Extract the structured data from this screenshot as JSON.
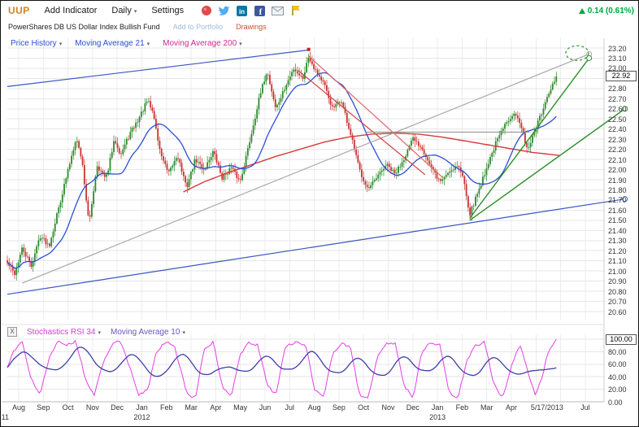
{
  "toolbar": {
    "symbol": "UUP",
    "add_indicator": "Add Indicator",
    "interval": "Daily",
    "settings": "Settings",
    "icons": [
      {
        "name": "stocktwits",
        "color": "#e14b4b"
      },
      {
        "name": "twitter",
        "color": "#55acee"
      },
      {
        "name": "linkedin",
        "color": "#0e76a8"
      },
      {
        "name": "facebook",
        "color": "#3b5998"
      },
      {
        "name": "email",
        "color": "#9aa7b5"
      },
      {
        "name": "flag",
        "color": "#f0c400"
      }
    ],
    "change_text": "0.14 (0.61%)",
    "change_color": "#00a63e"
  },
  "subheader": {
    "fund_name": "PowerShares DB US Dollar Index Bullish Fund",
    "add_to_portfolio": "Add to Portfolio",
    "drawings": "Drawings"
  },
  "price_panel": {
    "legend": [
      {
        "label": "Price History",
        "color": "#2b4fd8"
      },
      {
        "label": "Moving Average 21",
        "color": "#2b4fd8"
      },
      {
        "label": "Moving Average 200",
        "color": "#cc2d8e"
      }
    ],
    "last_price_badge": "22.92",
    "axis_ticks": [
      "23.20",
      "23.10",
      "23.00",
      "22.90",
      "22.80",
      "22.70",
      "22.60",
      "22.50",
      "22.40",
      "22.30",
      "22.20",
      "22.10",
      "22.00",
      "21.90",
      "21.80",
      "21.70",
      "21.60",
      "21.50",
      "21.40",
      "21.30",
      "21.20",
      "21.10",
      "21.00",
      "20.90",
      "20.80",
      "20.70",
      "20.60"
    ]
  },
  "stoch_panel": {
    "close_label": "X",
    "legend": [
      {
        "label": "Stochastics RSI 34",
        "color": "#d23bd2"
      },
      {
        "label": "Moving Average 10",
        "color": "#6a55c0"
      }
    ],
    "badge": "100.00",
    "axis_ticks": [
      "80.00",
      "60.00",
      "40.00",
      "20.00",
      "0.00"
    ]
  },
  "x_axis": {
    "tick_count": 24,
    "months": [
      {
        "label": "Aug",
        "tick": 0
      },
      {
        "label": "Sep",
        "tick": 1
      },
      {
        "label": "Oct",
        "tick": 2
      },
      {
        "label": "Nov",
        "tick": 3
      },
      {
        "label": "Dec",
        "tick": 4
      },
      {
        "label": "Jan",
        "tick": 5
      },
      {
        "label": "Feb",
        "tick": 6
      },
      {
        "label": "Mar",
        "tick": 7
      },
      {
        "label": "Apr",
        "tick": 8
      },
      {
        "label": "May",
        "tick": 9
      },
      {
        "label": "Jun",
        "tick": 10
      },
      {
        "label": "Jul",
        "tick": 11
      },
      {
        "label": "Aug",
        "tick": 12
      },
      {
        "label": "Sep",
        "tick": 13
      },
      {
        "label": "Oct",
        "tick": 14
      },
      {
        "label": "Nov",
        "tick": 15
      },
      {
        "label": "Dec",
        "tick": 16
      },
      {
        "label": "Jan",
        "tick": 17
      },
      {
        "label": "Feb",
        "tick": 18
      },
      {
        "label": "Mar",
        "tick": 19
      },
      {
        "label": "Apr",
        "tick": 20
      },
      {
        "label": "5/17/2013",
        "tick": 21.45
      },
      {
        "label": "Jul",
        "tick": 23
      }
    ],
    "years": [
      {
        "label": "11",
        "tick": -0.55
      },
      {
        "label": "2012",
        "tick": 5
      },
      {
        "label": "2013",
        "tick": 17
      }
    ]
  },
  "chart_data": {
    "type": "candlestick",
    "symbol": "UUP",
    "interval": "Daily",
    "title": "PowerShares DB US Dollar Index Bullish Fund",
    "price_range": [
      20.6,
      23.2
    ],
    "last_close": 22.92,
    "change_text": "0.14 (0.61%)",
    "bar_count": 300,
    "data_end_frac": 0.92,
    "price": {
      "close_anchors": [
        [
          0.0,
          21.08
        ],
        [
          0.012,
          20.97
        ],
        [
          0.025,
          21.22
        ],
        [
          0.04,
          21.05
        ],
        [
          0.055,
          21.35
        ],
        [
          0.07,
          21.25
        ],
        [
          0.085,
          21.6
        ],
        [
          0.1,
          21.95
        ],
        [
          0.115,
          22.32
        ],
        [
          0.125,
          22.1
        ],
        [
          0.137,
          21.45
        ],
        [
          0.15,
          22.05
        ],
        [
          0.165,
          21.9
        ],
        [
          0.18,
          22.3
        ],
        [
          0.19,
          22.15
        ],
        [
          0.205,
          22.35
        ],
        [
          0.22,
          22.5
        ],
        [
          0.235,
          22.68
        ],
        [
          0.245,
          22.55
        ],
        [
          0.255,
          22.2
        ],
        [
          0.27,
          21.95
        ],
        [
          0.285,
          22.15
        ],
        [
          0.3,
          21.82
        ],
        [
          0.315,
          22.1
        ],
        [
          0.33,
          22.0
        ],
        [
          0.345,
          22.18
        ],
        [
          0.36,
          21.92
        ],
        [
          0.375,
          22.02
        ],
        [
          0.39,
          21.88
        ],
        [
          0.405,
          22.25
        ],
        [
          0.42,
          22.65
        ],
        [
          0.435,
          22.98
        ],
        [
          0.45,
          22.6
        ],
        [
          0.465,
          22.8
        ],
        [
          0.48,
          23.0
        ],
        [
          0.495,
          22.9
        ],
        [
          0.505,
          23.12
        ],
        [
          0.515,
          23.0
        ],
        [
          0.53,
          22.85
        ],
        [
          0.545,
          22.6
        ],
        [
          0.56,
          22.68
        ],
        [
          0.575,
          22.35
        ],
        [
          0.59,
          22.0
        ],
        [
          0.605,
          21.8
        ],
        [
          0.62,
          21.92
        ],
        [
          0.635,
          22.05
        ],
        [
          0.65,
          21.95
        ],
        [
          0.665,
          22.12
        ],
        [
          0.68,
          22.3
        ],
        [
          0.695,
          22.22
        ],
        [
          0.71,
          22.02
        ],
        [
          0.725,
          21.88
        ],
        [
          0.74,
          21.98
        ],
        [
          0.755,
          22.05
        ],
        [
          0.765,
          21.9
        ],
        [
          0.775,
          21.56
        ],
        [
          0.79,
          21.8
        ],
        [
          0.805,
          22.05
        ],
        [
          0.82,
          22.28
        ],
        [
          0.835,
          22.45
        ],
        [
          0.85,
          22.58
        ],
        [
          0.862,
          22.4
        ],
        [
          0.872,
          22.2
        ],
        [
          0.882,
          22.35
        ],
        [
          0.895,
          22.55
        ],
        [
          0.905,
          22.7
        ],
        [
          0.915,
          22.85
        ],
        [
          0.92,
          22.92
        ]
      ],
      "ma21_window": 21,
      "ma200_anchors": [
        [
          0.295,
          21.78
        ],
        [
          0.33,
          21.88
        ],
        [
          0.37,
          21.97
        ],
        [
          0.41,
          22.05
        ],
        [
          0.45,
          22.13
        ],
        [
          0.49,
          22.2
        ],
        [
          0.53,
          22.27
        ],
        [
          0.57,
          22.32
        ],
        [
          0.61,
          22.35
        ],
        [
          0.65,
          22.36
        ],
        [
          0.69,
          22.35
        ],
        [
          0.73,
          22.32
        ],
        [
          0.77,
          22.28
        ],
        [
          0.81,
          22.24
        ],
        [
          0.85,
          22.2
        ],
        [
          0.88,
          22.17
        ],
        [
          0.91,
          22.15
        ],
        [
          0.925,
          22.14
        ]
      ]
    },
    "stochastic": {
      "name": "Stochastics RSI 34",
      "ma_name": "Moving Average 10",
      "range": [
        0,
        100
      ],
      "last_value": 100.0,
      "slow_window": 16,
      "fast_anchors": [
        [
          0.0,
          55
        ],
        [
          0.01,
          80
        ],
        [
          0.025,
          95
        ],
        [
          0.04,
          35
        ],
        [
          0.055,
          12
        ],
        [
          0.07,
          70
        ],
        [
          0.085,
          95
        ],
        [
          0.1,
          90
        ],
        [
          0.115,
          98
        ],
        [
          0.13,
          40
        ],
        [
          0.145,
          8
        ],
        [
          0.16,
          60
        ],
        [
          0.175,
          92
        ],
        [
          0.19,
          97
        ],
        [
          0.205,
          55
        ],
        [
          0.22,
          10
        ],
        [
          0.235,
          18
        ],
        [
          0.25,
          80
        ],
        [
          0.265,
          95
        ],
        [
          0.28,
          90
        ],
        [
          0.3,
          15
        ],
        [
          0.315,
          5
        ],
        [
          0.33,
          85
        ],
        [
          0.345,
          95
        ],
        [
          0.36,
          25
        ],
        [
          0.375,
          8
        ],
        [
          0.39,
          75
        ],
        [
          0.405,
          95
        ],
        [
          0.42,
          90
        ],
        [
          0.435,
          30
        ],
        [
          0.45,
          10
        ],
        [
          0.465,
          85
        ],
        [
          0.48,
          95
        ],
        [
          0.5,
          92
        ],
        [
          0.515,
          20
        ],
        [
          0.53,
          6
        ],
        [
          0.545,
          75
        ],
        [
          0.56,
          95
        ],
        [
          0.575,
          85
        ],
        [
          0.59,
          12
        ],
        [
          0.605,
          5
        ],
        [
          0.62,
          70
        ],
        [
          0.635,
          92
        ],
        [
          0.65,
          95
        ],
        [
          0.665,
          25
        ],
        [
          0.68,
          8
        ],
        [
          0.695,
          80
        ],
        [
          0.71,
          95
        ],
        [
          0.725,
          90
        ],
        [
          0.74,
          15
        ],
        [
          0.755,
          6
        ],
        [
          0.77,
          65
        ],
        [
          0.785,
          90
        ],
        [
          0.8,
          95
        ],
        [
          0.815,
          30
        ],
        [
          0.83,
          5
        ],
        [
          0.845,
          60
        ],
        [
          0.86,
          90
        ],
        [
          0.875,
          40
        ],
        [
          0.885,
          10
        ],
        [
          0.895,
          35
        ],
        [
          0.905,
          75
        ],
        [
          0.915,
          95
        ],
        [
          0.92,
          100
        ]
      ]
    },
    "trendlines": [
      {
        "name": "upper-blue-trendline",
        "color": "#3a55c0",
        "width": 1.2,
        "p1": [
          0.0,
          22.82
        ],
        "p2": [
          0.505,
          23.18
        ],
        "end_circle": false
      },
      {
        "name": "lower-blue-channel-line",
        "color": "#3a55c0",
        "width": 1.2,
        "p1": [
          0.0,
          20.77
        ],
        "p2": [
          1.035,
          21.71
        ],
        "end_circle": true
      },
      {
        "name": "gray-trendline",
        "color": "#a9a9a9",
        "width": 1.2,
        "p1": [
          0.025,
          20.88
        ],
        "p2": [
          0.975,
          23.14
        ],
        "end_circle": true
      },
      {
        "name": "red-downtrend-line-1",
        "color": "#e06666",
        "width": 1.2,
        "p1": [
          0.505,
          23.12
        ],
        "p2": [
          0.73,
          21.92
        ],
        "end_circle": false
      },
      {
        "name": "red-downtrend-line-2",
        "color": "#cc4444",
        "width": 1.2,
        "p1": [
          0.487,
          22.98
        ],
        "p2": [
          0.7,
          21.95
        ],
        "end_circle": false
      },
      {
        "name": "green-uptrend-line-upper",
        "color": "#2a8f2a",
        "width": 1.4,
        "p1": [
          0.775,
          21.52
        ],
        "p2": [
          0.975,
          23.1
        ],
        "end_circle": true
      },
      {
        "name": "green-uptrend-line-lower",
        "color": "#2a8f2a",
        "width": 1.4,
        "p1": [
          0.775,
          21.5
        ],
        "p2": [
          1.035,
          22.6
        ],
        "end_circle": true
      },
      {
        "name": "horizontal-level-line",
        "color": "#888888",
        "width": 1,
        "p1": [
          0.6,
          22.37
        ],
        "p2": [
          0.875,
          22.37
        ],
        "end_circle": false
      }
    ],
    "target_ellipse": {
      "cx_frac": 0.955,
      "cy_price": 23.15,
      "rx": 14,
      "ry": 9,
      "color": "#2a8f2a"
    },
    "peak_marker": {
      "frac": 0.505,
      "price": 23.17,
      "color": "#cc2222"
    },
    "colors": {
      "up": "#2d8a2d",
      "down": "#c93232",
      "ma21": "#2b4fd8",
      "ma200": "#d83838",
      "stoch_fast": "#e63ee6",
      "stoch_slow": "#3f3fa8",
      "grid": "#e6e6e6"
    }
  }
}
